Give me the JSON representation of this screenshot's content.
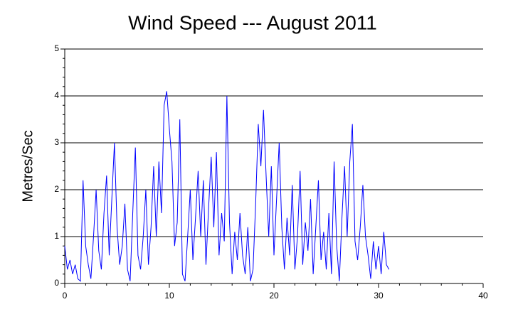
{
  "chart_data": {
    "type": "line",
    "title": "Wind Speed --- August 2011",
    "y_label": "Metres/Sec",
    "x": [
      0,
      0.25,
      0.5,
      0.75,
      1,
      1.25,
      1.5,
      1.75,
      2,
      2.25,
      2.5,
      2.75,
      3,
      3.25,
      3.5,
      3.75,
      4,
      4.25,
      4.5,
      4.75,
      5,
      5.25,
      5.5,
      5.75,
      6,
      6.25,
      6.5,
      6.75,
      7,
      7.25,
      7.5,
      7.75,
      8,
      8.25,
      8.5,
      8.75,
      9,
      9.25,
      9.5,
      9.75,
      10,
      10.25,
      10.5,
      10.75,
      11,
      11.25,
      11.5,
      11.75,
      12,
      12.25,
      12.5,
      12.75,
      13,
      13.25,
      13.5,
      13.75,
      14,
      14.25,
      14.5,
      14.75,
      15,
      15.25,
      15.5,
      15.75,
      16,
      16.25,
      16.5,
      16.75,
      17,
      17.25,
      17.5,
      17.75,
      18,
      18.25,
      18.5,
      18.75,
      19,
      19.25,
      19.5,
      19.75,
      20,
      20.25,
      20.5,
      20.75,
      21,
      21.25,
      21.5,
      21.75,
      22,
      22.25,
      22.5,
      22.75,
      23,
      23.25,
      23.5,
      23.75,
      24,
      24.25,
      24.5,
      24.75,
      25,
      25.25,
      25.5,
      25.75,
      26,
      26.25,
      26.5,
      26.75,
      27,
      27.25,
      27.5,
      27.75,
      28,
      28.25,
      28.5,
      28.75,
      29,
      29.25,
      29.5,
      29.75,
      30,
      30.25,
      30.5,
      30.75,
      31
    ],
    "series": [
      {
        "name": "Wind Speed",
        "color": "#0000ff",
        "values": [
          0.8,
          0.3,
          0.5,
          0.2,
          0.4,
          0.1,
          0.05,
          2.2,
          0.8,
          0.4,
          0.1,
          1.0,
          2.0,
          0.7,
          0.3,
          1.5,
          2.3,
          0.6,
          1.8,
          3.0,
          1.2,
          0.4,
          0.8,
          1.7,
          0.3,
          0.05,
          1.5,
          2.9,
          0.6,
          0.3,
          1.0,
          2.0,
          0.4,
          1.2,
          2.5,
          1.0,
          2.6,
          1.5,
          3.8,
          4.1,
          3.3,
          2.6,
          0.8,
          1.3,
          3.5,
          0.2,
          0.05,
          1.0,
          2.0,
          0.5,
          1.4,
          2.4,
          1.0,
          2.2,
          0.4,
          1.6,
          2.7,
          1.2,
          2.8,
          0.6,
          1.5,
          0.9,
          4.0,
          1.3,
          0.2,
          1.1,
          0.5,
          1.5,
          0.6,
          0.2,
          1.2,
          0.05,
          0.3,
          1.7,
          3.4,
          2.5,
          3.7,
          2.3,
          1.0,
          2.5,
          0.6,
          1.8,
          3.0,
          1.2,
          0.3,
          1.4,
          0.6,
          2.1,
          0.3,
          1.0,
          2.4,
          0.4,
          1.3,
          0.7,
          1.8,
          0.2,
          1.2,
          2.2,
          0.5,
          1.1,
          0.3,
          1.5,
          0.2,
          2.6,
          0.8,
          0.05,
          1.4,
          2.5,
          1.0,
          2.6,
          3.4,
          0.9,
          0.5,
          1.2,
          2.1,
          1.0,
          0.6,
          0.1,
          0.9,
          0.3,
          0.8,
          0.2,
          1.1,
          0.4,
          0.3
        ]
      }
    ],
    "xlim": [
      0,
      40
    ],
    "xticks": [
      0,
      10,
      20,
      30,
      40
    ],
    "xminorticks": [
      2,
      4,
      6,
      8,
      12,
      14,
      16,
      18,
      22,
      24,
      26,
      28,
      32,
      34,
      36,
      38
    ],
    "ylim": [
      0,
      5
    ],
    "yticks": [
      0,
      1,
      2,
      3,
      4,
      5
    ],
    "yminorticks": [
      0.2,
      0.4,
      0.6,
      0.8,
      1.2,
      1.4,
      1.6,
      1.8,
      2.2,
      2.4,
      2.6,
      2.8,
      3.2,
      3.4,
      3.6,
      3.8,
      4.2,
      4.4,
      4.6,
      4.8
    ],
    "grid": true
  }
}
